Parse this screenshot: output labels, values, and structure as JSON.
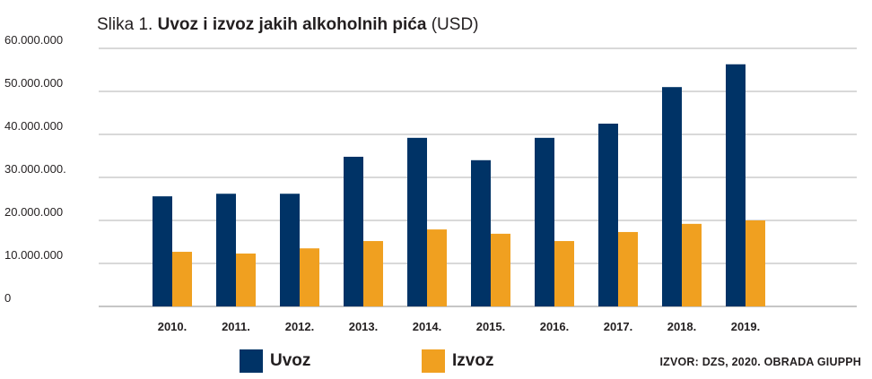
{
  "title": {
    "prefix": "Slika 1.",
    "main": "Uvoz i izvoz jakih alkoholnih pića",
    "unit": "(USD)"
  },
  "chart_data": {
    "type": "bar",
    "title": "Uvoz i izvoz jakih alkoholnih pića",
    "xlabel": "",
    "ylabel": "",
    "categories": [
      "2010.",
      "2011.",
      "2012.",
      "2013.",
      "2014.",
      "2015.",
      "2016.",
      "2017.",
      "2018.",
      "2019."
    ],
    "series": [
      {
        "name": "Uvoz",
        "color": "#003366",
        "values": [
          25600000,
          26200000,
          26200000,
          34800000,
          39200000,
          34000000,
          39200000,
          42500000,
          51000000,
          56300000
        ]
      },
      {
        "name": "Izvoz",
        "color": "#f0a020",
        "values": [
          12700000,
          12300000,
          13500000,
          15200000,
          17900000,
          16900000,
          15200000,
          17300000,
          19200000,
          20000000
        ]
      }
    ],
    "ylim": [
      0,
      60000000
    ],
    "yticks": [
      {
        "value": 0,
        "label": "0"
      },
      {
        "value": 10000000,
        "label": "10.000.000"
      },
      {
        "value": 20000000,
        "label": "20.000.000"
      },
      {
        "value": 30000000,
        "label": "30.000.000."
      },
      {
        "value": 40000000,
        "label": "40.000.000"
      },
      {
        "value": 50000000,
        "label": "50.000.000"
      },
      {
        "value": 60000000,
        "label": "60.000.000"
      }
    ],
    "grid": true,
    "legend": "bottom"
  },
  "legend": {
    "items": [
      {
        "label": "Uvoz",
        "color": "#003366"
      },
      {
        "label": "Izvoz",
        "color": "#f0a020"
      }
    ]
  },
  "source": "IZVOR: DZS, 2020. OBRADA GIUPPH"
}
